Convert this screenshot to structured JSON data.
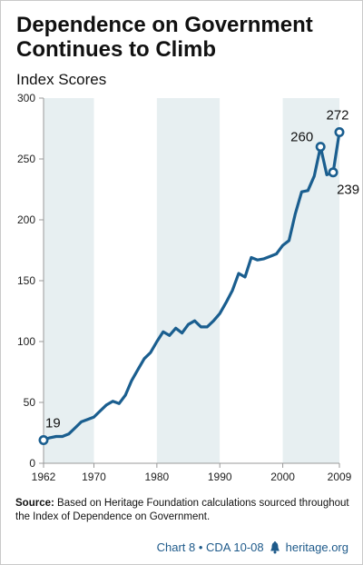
{
  "title": "Dependence on Government Continues to Climb",
  "subtitle": "Index Scores",
  "note": {
    "label": "Source:",
    "text": "Based on Heritage Foundation calculations sourced throughout the Index of Dependence on Government."
  },
  "footer": {
    "chart_id": "Chart 8 • CDA 10-08",
    "site": "heritage.org"
  },
  "colors": {
    "line": "#1a5e8f",
    "band": "#e7eff1",
    "axis": "#999999"
  },
  "chart_data": {
    "type": "line",
    "title": "Dependence on Government Continues to Climb",
    "ylabel": "Index Scores",
    "xlabel": "",
    "xlim": [
      1962,
      2009
    ],
    "ylim": [
      0,
      300
    ],
    "x_ticks": [
      1962,
      1970,
      1980,
      1990,
      2000,
      2009
    ],
    "y_ticks": [
      0,
      50,
      100,
      150,
      200,
      250,
      300
    ],
    "grid": false,
    "alternating_bands": true,
    "series": [
      {
        "x": [
          1962,
          1963,
          1964,
          1965,
          1966,
          1967,
          1968,
          1969,
          1970,
          1971,
          1972,
          1973,
          1974,
          1975,
          1976,
          1977,
          1978,
          1979,
          1980,
          1981,
          1982,
          1983,
          1984,
          1985,
          1986,
          1987,
          1988,
          1989,
          1990,
          1991,
          1992,
          1993,
          1994,
          1995,
          1996,
          1997,
          1998,
          1999,
          2000,
          2001,
          2002,
          2003,
          2004,
          2005,
          2006,
          2007,
          2008,
          2009
        ],
        "y": [
          19,
          21,
          22,
          22,
          24,
          29,
          34,
          36,
          38,
          43,
          48,
          51,
          49,
          56,
          68,
          77,
          86,
          91,
          100,
          108,
          105,
          111,
          107,
          114,
          117,
          112,
          112,
          117,
          123,
          132,
          142,
          156,
          153,
          169,
          167,
          168,
          170,
          172,
          179,
          183,
          205,
          223,
          224,
          236,
          260,
          237,
          239,
          272
        ]
      }
    ],
    "annotations": [
      {
        "x": 1962,
        "y": 19,
        "text": "19"
      },
      {
        "x": 2006,
        "y": 260,
        "text": "260"
      },
      {
        "x": 2008,
        "y": 239,
        "text": "239"
      },
      {
        "x": 2009,
        "y": 272,
        "text": "272"
      }
    ]
  }
}
